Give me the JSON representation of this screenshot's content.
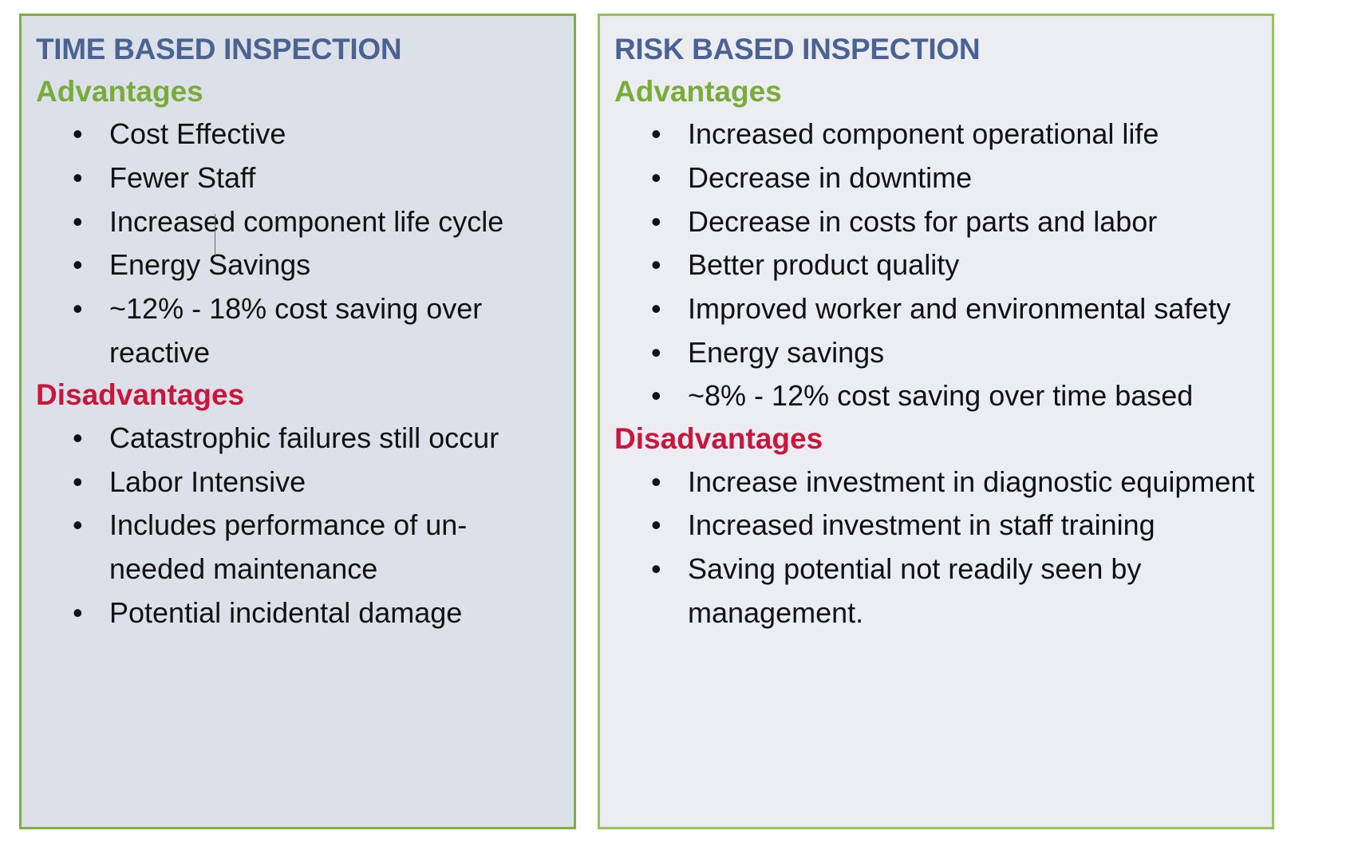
{
  "time_based": {
    "title": "TIME BASED INSPECTION",
    "advantages_heading": "Advantages",
    "advantages": [
      "Cost Effective",
      "Fewer Staff",
      "Increased component life cycle",
      "Energy Savings",
      "~12% - 18% cost saving over reactive"
    ],
    "disadvantages_heading": "Disadvantages",
    "disadvantages": [
      "Catastrophic failures still occur",
      "Labor Intensive",
      "Includes performance of un-needed maintenance",
      "Potential incidental damage"
    ]
  },
  "risk_based": {
    "title": "RISK BASED INSPECTION",
    "advantages_heading": "Advantages",
    "advantages": [
      "Increased component operational life",
      "Decrease in downtime",
      "Decrease in costs for parts and labor",
      "Better product quality",
      "Improved worker and environmental safety",
      "Energy savings",
      "~8% - 12% cost saving over time based"
    ],
    "disadvantages_heading": "Disadvantages",
    "disadvantages": [
      "Increase investment in diagnostic equipment",
      "Increased investment in staff training",
      "Saving potential not readily seen by management."
    ]
  },
  "bullet_glyph": "•",
  "colors": {
    "title": "#4b6392",
    "advantages": "#7aac3a",
    "disadvantages": "#c8163c",
    "border": "#8cb84f"
  }
}
